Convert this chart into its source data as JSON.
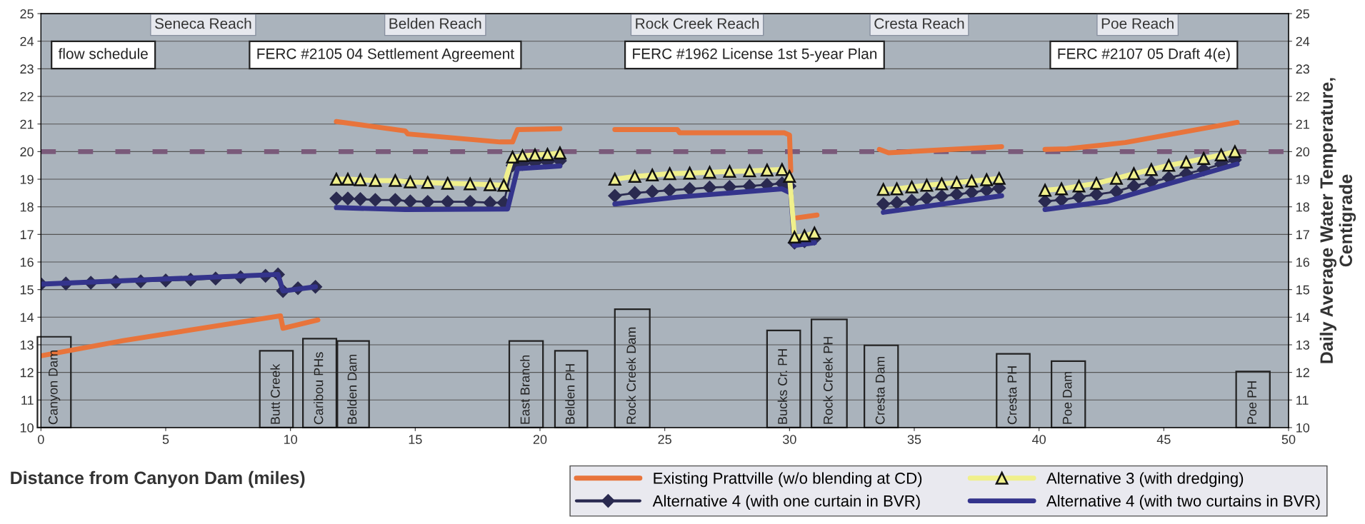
{
  "chart_data": {
    "type": "line",
    "xlabel": "Distance from Canyon Dam (miles)",
    "y2label": "Daily Average Water Temperature,\nCentigrade",
    "xlim": [
      0,
      50
    ],
    "xticks": [
      0,
      5,
      10,
      15,
      20,
      25,
      30,
      35,
      40,
      45,
      50
    ],
    "ylim": [
      10,
      25
    ],
    "yticks": [
      10,
      11,
      12,
      13,
      14,
      15,
      16,
      17,
      18,
      19,
      20,
      21,
      22,
      23,
      24,
      25
    ],
    "y2lim": [
      10,
      25
    ],
    "y2ticks": [
      10,
      11,
      12,
      13,
      14,
      15,
      16,
      17,
      18,
      19,
      20,
      21,
      22,
      23,
      24,
      25
    ],
    "grid": "y",
    "legend": "bottom right",
    "line_style": "solid",
    "ref_lines": [
      {
        "axis": "y",
        "value": 20,
        "color": "#7a5a7a",
        "line_style": "dashed"
      }
    ],
    "series": [
      {
        "name": "Existing Prattville (w/o blending at CD)",
        "color": "#e8743b",
        "marker": "none",
        "x": [
          0,
          3.3,
          9.6,
          9.7,
          11.1,
          11.5,
          11.84,
          14.6,
          14.7,
          18.4,
          18.9,
          19.1,
          20.8,
          22,
          23.0,
          25.5,
          25.6,
          29.8,
          30.0,
          30.05,
          30.2,
          30.3,
          31.1,
          32,
          33.6,
          33.97,
          38.5,
          39,
          40.24,
          41.13,
          43.46,
          47.94
        ],
        "values": [
          12.6,
          13.15,
          14.05,
          13.6,
          13.9,
          null,
          21.09,
          20.75,
          20.64,
          20.35,
          20.35,
          20.8,
          20.83,
          null,
          20.8,
          20.8,
          20.68,
          20.68,
          20.6,
          19.3,
          null,
          17.6,
          17.7,
          null,
          20.08,
          19.96,
          20.18,
          null,
          20.08,
          20.1,
          20.33,
          21.06
        ]
      },
      {
        "name": "Alternative 3 (with dredging)",
        "color": "#f0f08c",
        "marker": "triangle",
        "x": [
          11.84,
          12.3,
          12.8,
          13.4,
          14.2,
          14.8,
          15.5,
          16.3,
          17.2,
          18.0,
          18.55,
          18.9,
          19.3,
          19.8,
          20.3,
          20.8,
          22,
          23.0,
          23.8,
          24.5,
          25.2,
          26.0,
          26.8,
          27.6,
          28.4,
          29.1,
          29.7,
          30.0,
          30.2,
          30.6,
          31.0,
          32,
          33.76,
          34.3,
          34.9,
          35.5,
          36.1,
          36.7,
          37.3,
          37.9,
          38.4,
          39,
          40.24,
          40.9,
          41.6,
          42.3,
          43.1,
          43.8,
          44.5,
          45.2,
          45.9,
          46.6,
          47.3,
          47.85
        ],
        "values": [
          19.0,
          19.0,
          18.98,
          18.95,
          18.95,
          18.9,
          18.88,
          18.85,
          18.83,
          18.8,
          18.78,
          19.8,
          19.85,
          19.88,
          19.9,
          19.95,
          null,
          19.0,
          19.1,
          19.15,
          19.2,
          19.22,
          19.25,
          19.28,
          19.3,
          19.33,
          19.35,
          19.1,
          16.9,
          16.95,
          17.05,
          null,
          18.63,
          18.65,
          18.72,
          18.78,
          18.83,
          18.88,
          18.93,
          18.98,
          19.03,
          null,
          18.6,
          18.65,
          18.75,
          18.85,
          19.03,
          19.2,
          19.35,
          19.5,
          19.62,
          19.75,
          19.88,
          20.0
        ]
      },
      {
        "name": "Alternative 4 (with one curtain in BVR)",
        "color": "#2a2a50",
        "marker": "diamond",
        "x": [
          0,
          1,
          2,
          3,
          4,
          5,
          6,
          7,
          8,
          9,
          9.5,
          9.7,
          10.3,
          11.0,
          11.4,
          11.84,
          12.3,
          12.8,
          13.4,
          14.2,
          14.8,
          15.5,
          16.3,
          17.2,
          18.0,
          18.55,
          18.9,
          19.3,
          19.8,
          20.3,
          20.8,
          22,
          23.0,
          23.8,
          24.5,
          25.2,
          26.0,
          26.8,
          27.6,
          28.4,
          29.1,
          29.7,
          30.0,
          30.2,
          30.6,
          31.0,
          32,
          33.76,
          34.3,
          34.9,
          35.5,
          36.1,
          36.7,
          37.3,
          37.9,
          38.4,
          39,
          40.24,
          40.9,
          41.6,
          42.3,
          43.1,
          43.8,
          44.5,
          45.2,
          45.9,
          46.6,
          47.3,
          47.85
        ],
        "values": [
          15.2,
          15.22,
          15.25,
          15.28,
          15.3,
          15.33,
          15.36,
          15.4,
          15.45,
          15.5,
          15.55,
          14.95,
          15.05,
          15.1,
          null,
          18.3,
          18.3,
          18.28,
          18.25,
          18.25,
          18.2,
          18.18,
          18.18,
          18.18,
          18.15,
          18.15,
          19.5,
          19.55,
          19.6,
          19.62,
          19.67,
          null,
          18.4,
          18.5,
          18.55,
          18.6,
          18.65,
          18.7,
          18.72,
          18.75,
          18.8,
          18.85,
          18.75,
          16.7,
          16.75,
          16.85,
          null,
          18.1,
          18.15,
          18.22,
          18.3,
          18.38,
          18.45,
          18.52,
          18.6,
          18.68,
          null,
          18.2,
          18.25,
          18.35,
          18.45,
          18.55,
          18.75,
          18.9,
          19.05,
          19.2,
          19.35,
          19.55,
          19.7
        ]
      },
      {
        "name": "Alternative 4 (with two curtains in BVR)",
        "color": "#34348c",
        "marker": "none",
        "x": [
          0,
          9.5,
          9.7,
          11.0,
          11.4,
          11.84,
          14.6,
          18.7,
          19.1,
          20.8,
          22,
          23.0,
          25.5,
          29.7,
          30.05,
          30.2,
          31.0,
          32,
          33.76,
          38.5,
          39,
          40.24,
          42.75,
          47.94
        ],
        "values": [
          15.2,
          15.55,
          14.95,
          15.1,
          null,
          17.97,
          17.9,
          17.92,
          19.38,
          19.48,
          null,
          18.1,
          18.35,
          18.65,
          18.5,
          16.6,
          16.7,
          null,
          17.8,
          18.4,
          null,
          17.9,
          18.2,
          19.55
        ]
      }
    ],
    "annotations": [
      "Seneca Reach",
      "Belden Reach",
      "Rock Creek Reach",
      "Cresta Reach",
      "Poe Reach",
      "flow schedule",
      "FERC #2105 04 Settlement Agreement",
      "FERC #1962 License 1st 5-year Plan",
      "FERC #2107 05 Draft 4(e)",
      "Canyon Dam",
      "Butt Creek",
      "Caribou PHs",
      "Belden Dam",
      "East Branch",
      "Belden PH",
      "Rock Creek Dam",
      "Bucks Cr. PH",
      "Rock Creek PH",
      "Cresta Dam",
      "Cresta PH",
      "Poe Dam",
      "Poe PH"
    ]
  }
}
